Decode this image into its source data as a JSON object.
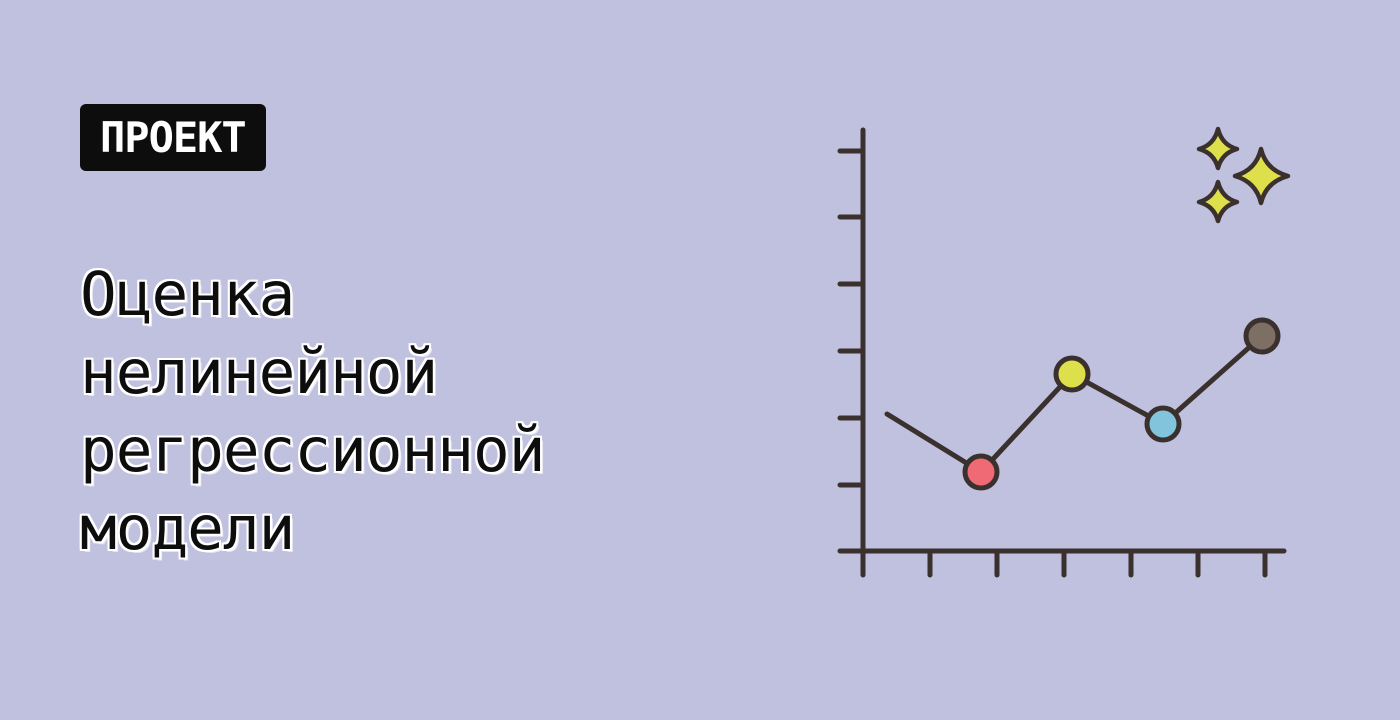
{
  "badge": {
    "label": "ПРОЕКТ"
  },
  "title": {
    "lines": [
      "Оценка",
      "нелинейной",
      "регрессионной",
      "модели"
    ]
  },
  "colors": {
    "background": "#c0c1de",
    "ink": "#3a302d",
    "point_red": "#ef6a75",
    "point_yellow": "#dde04a",
    "point_blue": "#82c4dc",
    "point_brown": "#7d6f64",
    "sparkle": "#dde04a"
  },
  "icons": {
    "chart": "line-chart-icon",
    "sparkles": "sparkles-icon"
  }
}
